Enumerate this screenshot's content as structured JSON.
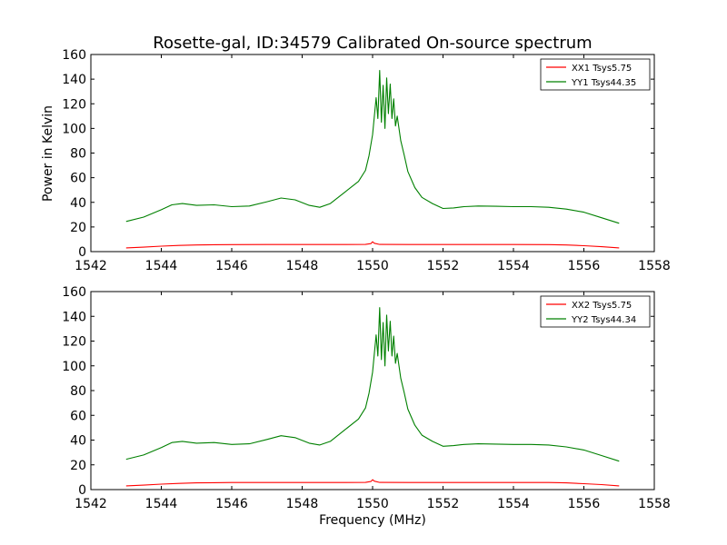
{
  "figure": {
    "title": "Rosette-gal, ID:34579 Calibrated On-source spectrum",
    "ylabel": "Power in Kelvin",
    "xlabel": "Frequency (MHz)"
  },
  "chart_data": [
    {
      "type": "line",
      "xlim": [
        1542,
        1558
      ],
      "ylim": [
        0,
        160
      ],
      "xticks": [
        "1542",
        "1544",
        "1546",
        "1548",
        "1550",
        "1552",
        "1554",
        "1556",
        "1558"
      ],
      "yticks": [
        "0",
        "20",
        "40",
        "60",
        "80",
        "100",
        "120",
        "140",
        "160"
      ],
      "grid": false,
      "legend_position": "top-right",
      "series": [
        {
          "name": "XX1 Tsys5.75",
          "color": "#ff0000",
          "x": [
            1543.0,
            1543.5,
            1544.0,
            1544.5,
            1545.0,
            1545.5,
            1546.0,
            1547.0,
            1548.0,
            1549.0,
            1549.8,
            1549.95,
            1550.0,
            1550.05,
            1550.2,
            1551.0,
            1552.0,
            1553.0,
            1554.0,
            1555.0,
            1555.5,
            1556.0,
            1556.5,
            1557.0
          ],
          "y": [
            3.0,
            3.6,
            4.4,
            5.0,
            5.4,
            5.6,
            5.7,
            5.75,
            5.75,
            5.75,
            5.8,
            6.5,
            8.0,
            6.8,
            5.8,
            5.75,
            5.75,
            5.75,
            5.75,
            5.7,
            5.4,
            4.8,
            4.0,
            3.0
          ]
        },
        {
          "name": "YY1 Tsys44.35",
          "color": "#008000",
          "x": [
            1543.0,
            1543.5,
            1544.0,
            1544.3,
            1544.6,
            1545.0,
            1545.5,
            1546.0,
            1546.5,
            1547.0,
            1547.4,
            1547.8,
            1548.2,
            1548.5,
            1548.8,
            1549.2,
            1549.6,
            1549.8,
            1549.9,
            1550.0,
            1550.1,
            1550.15,
            1550.2,
            1550.25,
            1550.3,
            1550.35,
            1550.4,
            1550.45,
            1550.5,
            1550.55,
            1550.6,
            1550.65,
            1550.7,
            1550.8,
            1550.9,
            1551.0,
            1551.2,
            1551.4,
            1551.7,
            1552.0,
            1552.3,
            1552.6,
            1553.0,
            1553.5,
            1554.0,
            1554.5,
            1555.0,
            1555.5,
            1556.0,
            1556.5,
            1557.0
          ],
          "y": [
            24.5,
            28.0,
            34.0,
            38.0,
            39.0,
            37.5,
            38.0,
            36.5,
            37.0,
            40.5,
            43.5,
            42.0,
            37.5,
            36.0,
            39.0,
            48.0,
            57.0,
            66.0,
            78.0,
            95.0,
            125.0,
            108.0,
            147.0,
            105.0,
            135.0,
            100.0,
            141.0,
            112.0,
            136.0,
            108.0,
            124.0,
            102.0,
            110.0,
            90.0,
            78.0,
            65.0,
            52.0,
            44.0,
            39.0,
            35.0,
            35.5,
            36.5,
            37.0,
            36.8,
            36.5,
            36.5,
            36.0,
            34.5,
            32.0,
            27.5,
            23.0
          ]
        }
      ]
    },
    {
      "type": "line",
      "xlim": [
        1542,
        1558
      ],
      "ylim": [
        0,
        160
      ],
      "xticks": [
        "1542",
        "1544",
        "1546",
        "1548",
        "1550",
        "1552",
        "1554",
        "1556",
        "1558"
      ],
      "yticks": [
        "0",
        "20",
        "40",
        "60",
        "80",
        "100",
        "120",
        "140",
        "160"
      ],
      "grid": false,
      "legend_position": "top-right",
      "series": [
        {
          "name": "XX2 Tsys5.75",
          "color": "#ff0000",
          "x": [
            1543.0,
            1543.5,
            1544.0,
            1544.5,
            1545.0,
            1545.5,
            1546.0,
            1547.0,
            1548.0,
            1549.0,
            1549.8,
            1549.95,
            1550.0,
            1550.05,
            1550.2,
            1551.0,
            1552.0,
            1553.0,
            1554.0,
            1555.0,
            1555.5,
            1556.0,
            1556.5,
            1557.0
          ],
          "y": [
            3.0,
            3.6,
            4.4,
            5.0,
            5.4,
            5.6,
            5.7,
            5.75,
            5.75,
            5.75,
            5.8,
            6.5,
            8.0,
            6.8,
            5.8,
            5.75,
            5.75,
            5.75,
            5.75,
            5.7,
            5.4,
            4.8,
            4.0,
            3.0
          ]
        },
        {
          "name": "YY2 Tsys44.34",
          "color": "#008000",
          "x": [
            1543.0,
            1543.5,
            1544.0,
            1544.3,
            1544.6,
            1545.0,
            1545.5,
            1546.0,
            1546.5,
            1547.0,
            1547.4,
            1547.8,
            1548.2,
            1548.5,
            1548.8,
            1549.2,
            1549.6,
            1549.8,
            1549.9,
            1550.0,
            1550.1,
            1550.15,
            1550.2,
            1550.25,
            1550.3,
            1550.35,
            1550.4,
            1550.45,
            1550.5,
            1550.55,
            1550.6,
            1550.65,
            1550.7,
            1550.8,
            1550.9,
            1551.0,
            1551.2,
            1551.4,
            1551.7,
            1552.0,
            1552.3,
            1552.6,
            1553.0,
            1553.5,
            1554.0,
            1554.5,
            1555.0,
            1555.5,
            1556.0,
            1556.5,
            1557.0
          ],
          "y": [
            24.5,
            28.0,
            34.0,
            38.0,
            39.0,
            37.5,
            38.0,
            36.5,
            37.0,
            40.5,
            43.5,
            42.0,
            37.5,
            36.0,
            39.0,
            48.0,
            57.0,
            66.0,
            78.0,
            95.0,
            125.0,
            108.0,
            147.0,
            105.0,
            135.0,
            100.0,
            141.0,
            112.0,
            136.0,
            108.0,
            124.0,
            102.0,
            110.0,
            90.0,
            78.0,
            65.0,
            52.0,
            44.0,
            39.0,
            35.0,
            35.5,
            36.5,
            37.0,
            36.8,
            36.5,
            36.5,
            36.0,
            34.5,
            32.0,
            27.5,
            23.0
          ]
        }
      ]
    }
  ]
}
